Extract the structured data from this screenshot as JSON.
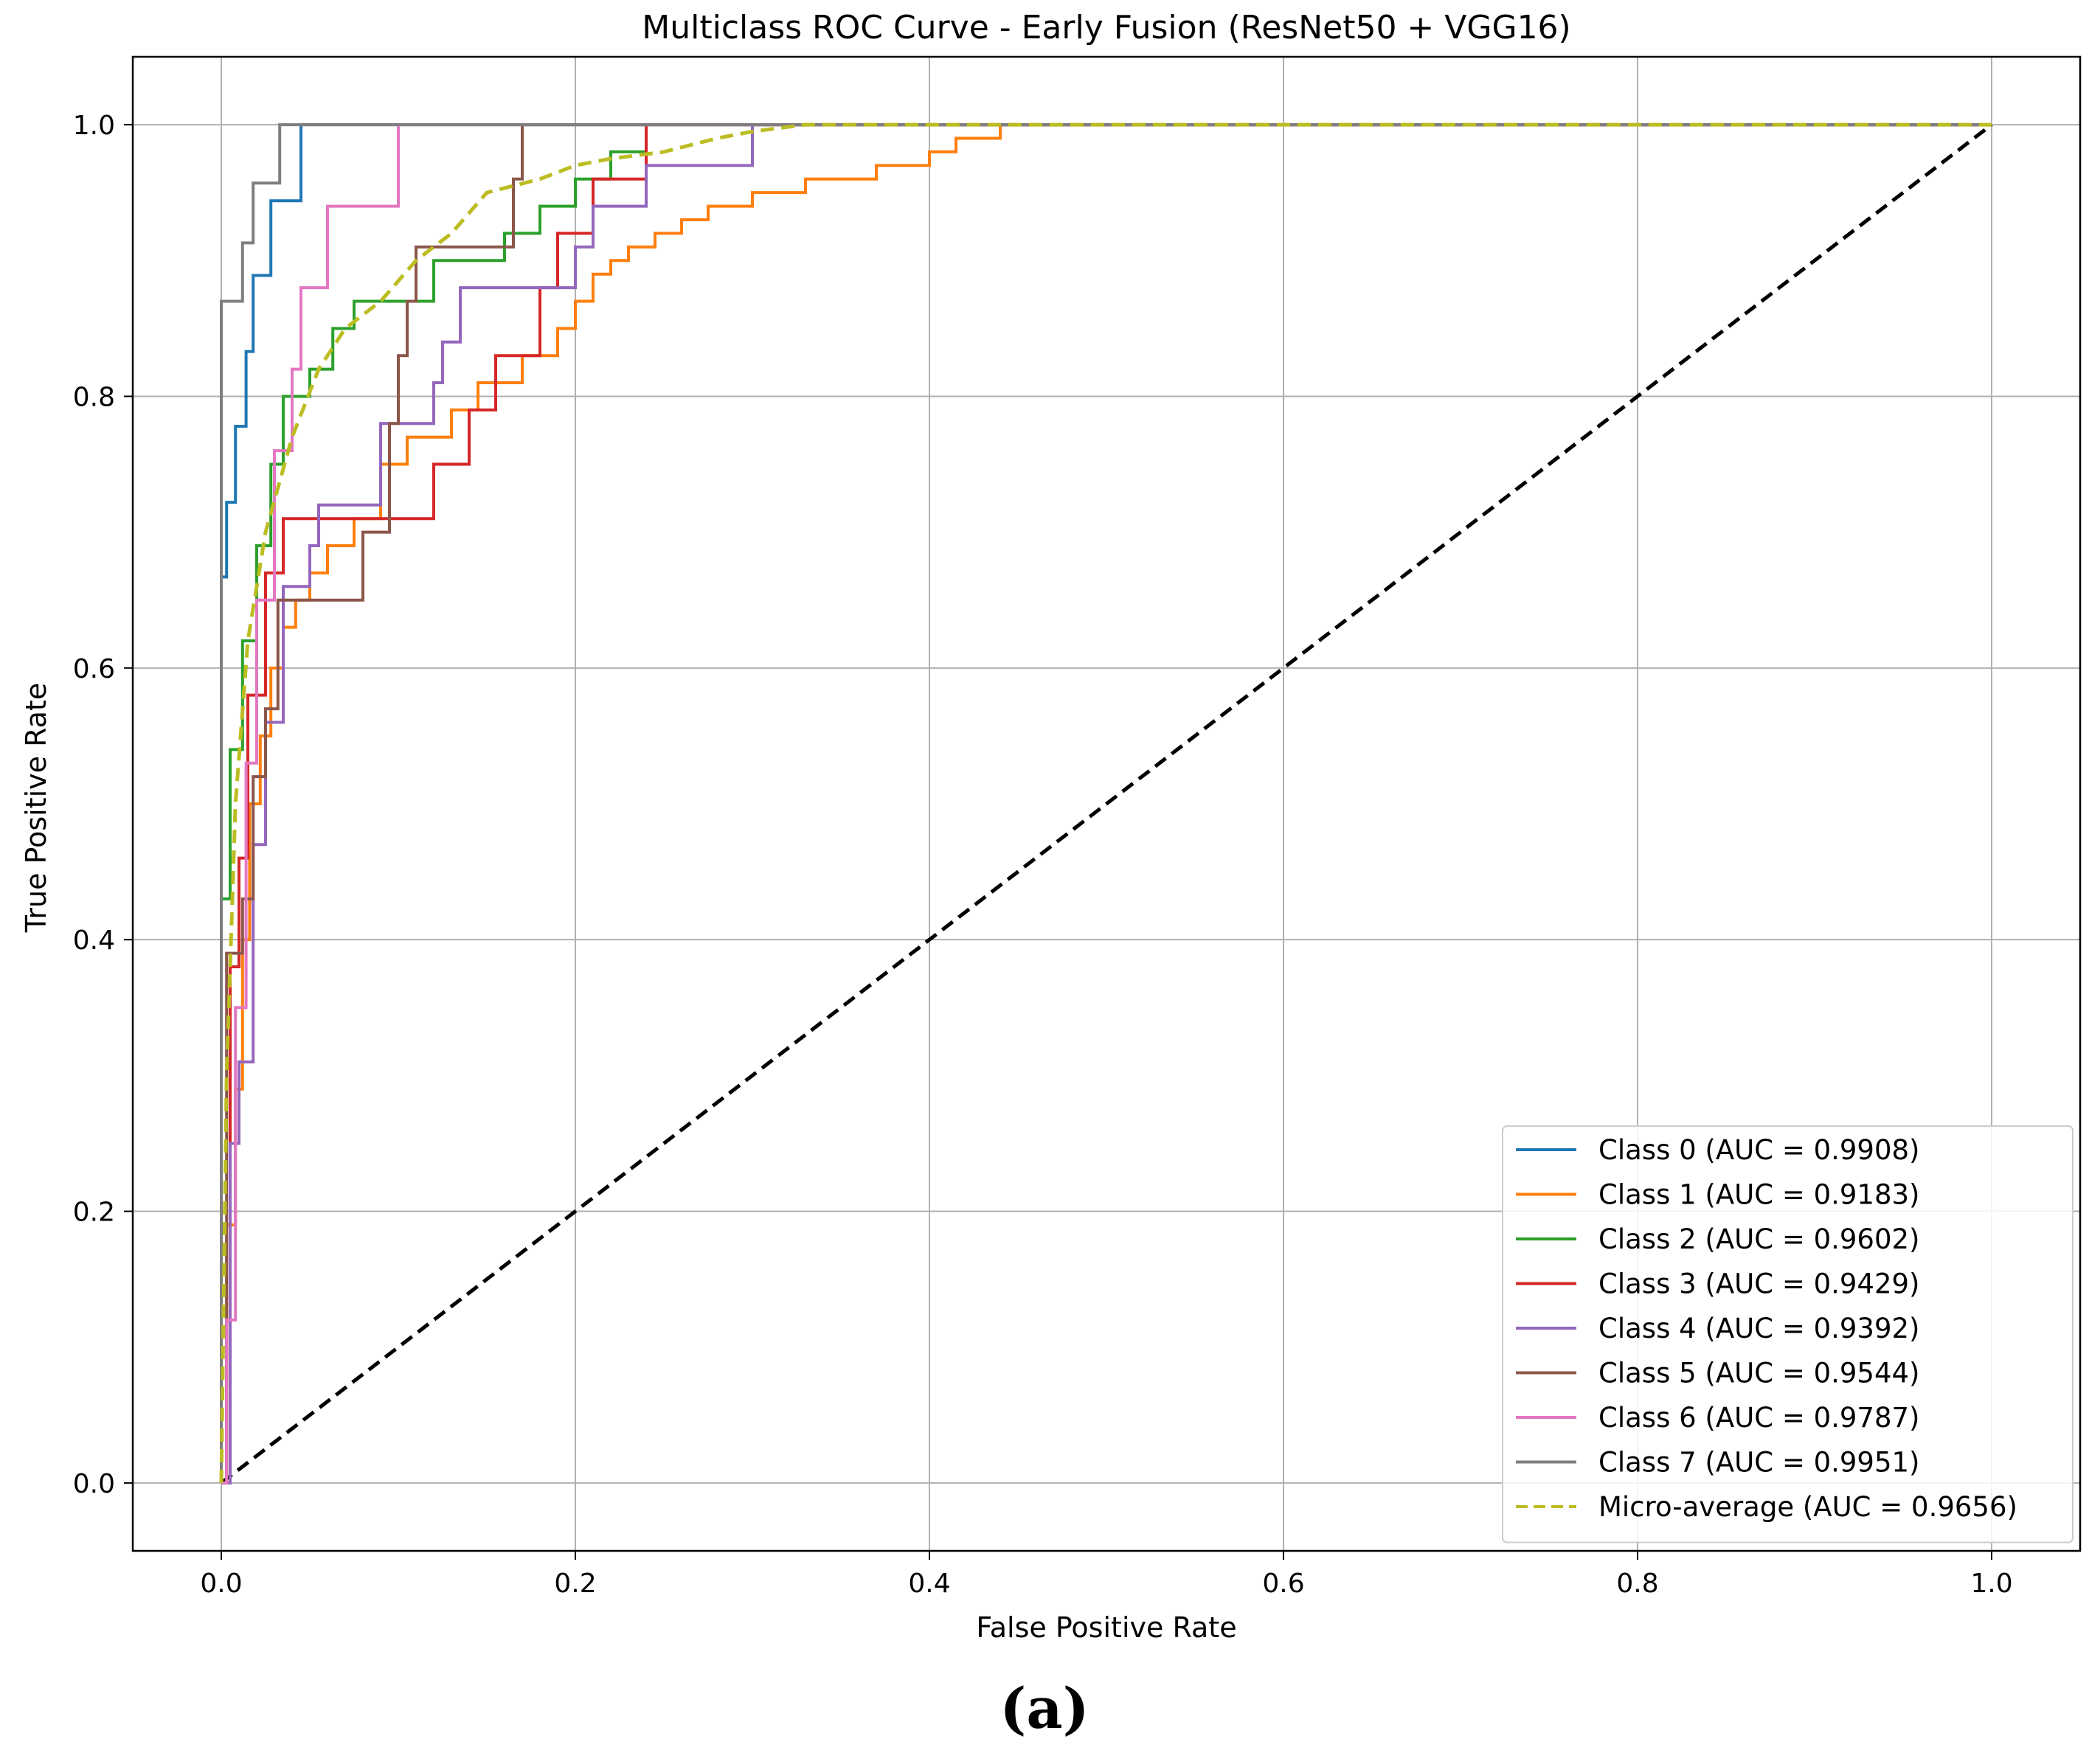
{
  "caption": "(a)",
  "chart_data": {
    "type": "line",
    "title": "Multiclass ROC Curve - Early Fusion (ResNet50 + VGG16)",
    "xlabel": "False Positive Rate",
    "ylabel": "True Positive Rate",
    "xlim": [
      -0.05,
      1.05
    ],
    "ylim": [
      -0.05,
      1.05
    ],
    "xticks": [
      0.0,
      0.2,
      0.4,
      0.6,
      0.8,
      1.0
    ],
    "yticks": [
      0.0,
      0.2,
      0.4,
      0.6,
      0.8,
      1.0
    ],
    "xtick_labels": [
      "0.0",
      "0.2",
      "0.4",
      "0.6",
      "0.8",
      "1.0"
    ],
    "ytick_labels": [
      "0.0",
      "0.2",
      "0.4",
      "0.6",
      "0.8",
      "1.0"
    ],
    "grid": true,
    "legend_position": "lower-right",
    "series": [
      {
        "name": "Class 0 (AUC = 0.9908)",
        "color": "#1f77b4",
        "dash": "solid",
        "x": [
          0,
          0,
          0.003,
          0.003,
          0.008,
          0.008,
          0.014,
          0.014,
          0.018,
          0.018,
          0.028,
          0.028,
          0.045,
          0.045,
          0.055,
          0.055,
          1.0
        ],
        "y": [
          0,
          0.667,
          0.667,
          0.722,
          0.722,
          0.778,
          0.778,
          0.833,
          0.833,
          0.889,
          0.889,
          0.944,
          0.944,
          1.0,
          1.0,
          1.0,
          1.0
        ]
      },
      {
        "name": "Class 1 (AUC = 0.9183)",
        "color": "#ff7f0e",
        "dash": "solid",
        "x": [
          0,
          0.003,
          0.003,
          0.008,
          0.008,
          0.012,
          0.012,
          0.016,
          0.016,
          0.022,
          0.022,
          0.028,
          0.028,
          0.035,
          0.035,
          0.042,
          0.042,
          0.05,
          0.05,
          0.06,
          0.06,
          0.075,
          0.075,
          0.09,
          0.09,
          0.105,
          0.105,
          0.13,
          0.13,
          0.145,
          0.145,
          0.17,
          0.17,
          0.19,
          0.19,
          0.2,
          0.2,
          0.21,
          0.21,
          0.22,
          0.22,
          0.23,
          0.23,
          0.245,
          0.245,
          0.26,
          0.26,
          0.275,
          0.275,
          0.3,
          0.3,
          0.33,
          0.33,
          0.37,
          0.37,
          0.4,
          0.4,
          0.415,
          0.415,
          0.44,
          0.44,
          0.51,
          0.51,
          0.7,
          0.7,
          0.745,
          0.745,
          1.0
        ],
        "y": [
          0,
          0,
          0.19,
          0.19,
          0.29,
          0.29,
          0.4,
          0.4,
          0.5,
          0.5,
          0.55,
          0.55,
          0.6,
          0.6,
          0.63,
          0.63,
          0.65,
          0.65,
          0.67,
          0.67,
          0.69,
          0.69,
          0.71,
          0.71,
          0.75,
          0.75,
          0.77,
          0.77,
          0.79,
          0.79,
          0.81,
          0.81,
          0.83,
          0.83,
          0.85,
          0.85,
          0.87,
          0.87,
          0.89,
          0.89,
          0.9,
          0.9,
          0.91,
          0.91,
          0.92,
          0.92,
          0.93,
          0.93,
          0.94,
          0.94,
          0.95,
          0.95,
          0.96,
          0.96,
          0.97,
          0.97,
          0.98,
          0.98,
          0.99,
          0.99,
          1.0,
          1.0,
          1.0,
          1.0,
          1.0,
          1.0,
          1.0,
          1.0
        ]
      },
      {
        "name": "Class 2 (AUC = 0.9602)",
        "color": "#2ca02c",
        "dash": "solid",
        "x": [
          0,
          0,
          0.005,
          0.005,
          0.012,
          0.012,
          0.02,
          0.02,
          0.028,
          0.028,
          0.035,
          0.035,
          0.05,
          0.05,
          0.063,
          0.063,
          0.075,
          0.075,
          0.12,
          0.12,
          0.16,
          0.16,
          0.18,
          0.18,
          0.2,
          0.2,
          0.22,
          0.22,
          0.24,
          0.24,
          0.26,
          0.26,
          1.0
        ],
        "y": [
          0,
          0.43,
          0.43,
          0.54,
          0.54,
          0.62,
          0.62,
          0.69,
          0.69,
          0.75,
          0.75,
          0.8,
          0.8,
          0.82,
          0.82,
          0.85,
          0.85,
          0.87,
          0.87,
          0.9,
          0.9,
          0.92,
          0.92,
          0.94,
          0.94,
          0.96,
          0.96,
          0.98,
          0.98,
          1.0,
          1.0,
          1.0,
          1.0
        ],
        "_note_removed": ""
      },
      {
        "name": "Class 3 (AUC = 0.9429)",
        "color": "#d62728",
        "dash": "solid",
        "x": [
          0,
          0.005,
          0.005,
          0.01,
          0.01,
          0.015,
          0.015,
          0.025,
          0.025,
          0.035,
          0.035,
          0.05,
          0.05,
          0.07,
          0.07,
          0.12,
          0.12,
          0.14,
          0.14,
          0.155,
          0.155,
          0.16,
          0.16,
          0.18,
          0.18,
          0.19,
          0.19,
          0.21,
          0.21,
          0.24,
          0.24,
          1.0
        ],
        "y": [
          0,
          0,
          0.38,
          0.38,
          0.46,
          0.46,
          0.58,
          0.58,
          0.67,
          0.67,
          0.71,
          0.71,
          0.71,
          0.71,
          0.71,
          0.71,
          0.75,
          0.75,
          0.79,
          0.79,
          0.83,
          0.83,
          0.83,
          0.83,
          0.88,
          0.88,
          0.92,
          0.92,
          0.96,
          0.96,
          1.0,
          1.0
        ]
      },
      {
        "name": "Class 4 (AUC = 0.9392)",
        "color": "#9467bd",
        "dash": "solid",
        "x": [
          0,
          0.005,
          0.005,
          0.01,
          0.01,
          0.018,
          0.018,
          0.025,
          0.025,
          0.035,
          0.035,
          0.05,
          0.05,
          0.055,
          0.055,
          0.065,
          0.065,
          0.09,
          0.09,
          0.12,
          0.12,
          0.125,
          0.125,
          0.135,
          0.135,
          0.165,
          0.165,
          0.2,
          0.2,
          0.21,
          0.21,
          0.24,
          0.24,
          0.26,
          0.26,
          0.3,
          0.3,
          0.32,
          0.32,
          1.0
        ],
        "y": [
          0,
          0,
          0.25,
          0.25,
          0.31,
          0.31,
          0.47,
          0.47,
          0.56,
          0.56,
          0.66,
          0.66,
          0.69,
          0.69,
          0.72,
          0.72,
          0.72,
          0.72,
          0.78,
          0.78,
          0.81,
          0.81,
          0.84,
          0.84,
          0.88,
          0.88,
          0.88,
          0.88,
          0.91,
          0.91,
          0.94,
          0.94,
          0.97,
          0.97,
          0.97,
          0.97,
          1.0,
          1.0,
          1.0,
          1.0
        ]
      },
      {
        "name": "Class 5 (AUC = 0.9544)",
        "color": "#8c564b",
        "dash": "solid",
        "x": [
          0,
          0.003,
          0.003,
          0.012,
          0.012,
          0.018,
          0.018,
          0.025,
          0.025,
          0.032,
          0.032,
          0.055,
          0.055,
          0.08,
          0.08,
          0.095,
          0.095,
          0.1,
          0.1,
          0.105,
          0.105,
          0.11,
          0.11,
          0.14,
          0.14,
          0.165,
          0.165,
          0.17,
          0.17,
          1.0
        ],
        "y": [
          0,
          0,
          0.39,
          0.39,
          0.43,
          0.43,
          0.52,
          0.52,
          0.57,
          0.57,
          0.65,
          0.65,
          0.65,
          0.65,
          0.7,
          0.7,
          0.78,
          0.78,
          0.83,
          0.83,
          0.87,
          0.87,
          0.91,
          0.91,
          0.91,
          0.91,
          0.96,
          0.96,
          1.0,
          1.0
        ]
      },
      {
        "name": "Class 6 (AUC = 0.9787)",
        "color": "#e377c2",
        "dash": "solid",
        "x": [
          0,
          0.003,
          0.003,
          0.008,
          0.008,
          0.014,
          0.014,
          0.02,
          0.02,
          0.03,
          0.03,
          0.04,
          0.04,
          0.045,
          0.045,
          0.06,
          0.06,
          0.1,
          0.1,
          1.0
        ],
        "y": [
          0,
          0,
          0.12,
          0.12,
          0.35,
          0.35,
          0.53,
          0.53,
          0.65,
          0.65,
          0.76,
          0.76,
          0.82,
          0.82,
          0.88,
          0.88,
          0.94,
          0.94,
          1.0,
          1.0
        ]
      },
      {
        "name": "Class 7 (AUC = 0.9951)",
        "color": "#7f7f7f",
        "dash": "solid",
        "x": [
          0,
          0,
          0.005,
          0.005,
          0.012,
          0.012,
          0.018,
          0.018,
          0.03,
          0.03,
          0.033,
          0.033,
          1.0
        ],
        "y": [
          0,
          0.87,
          0.87,
          0.87,
          0.87,
          0.913,
          0.913,
          0.957,
          0.957,
          0.957,
          0.957,
          1.0,
          1.0
        ]
      },
      {
        "name": "Micro-average (AUC = 0.9656)",
        "color": "#bcbd22",
        "dash": "dashed",
        "x": [
          0,
          0.003,
          0.008,
          0.015,
          0.025,
          0.04,
          0.055,
          0.07,
          0.09,
          0.11,
          0.13,
          0.15,
          0.18,
          0.2,
          0.22,
          0.25,
          0.28,
          0.3,
          0.33,
          0.4,
          0.5,
          0.7,
          1.0
        ],
        "y": [
          0,
          0.3,
          0.5,
          0.62,
          0.7,
          0.77,
          0.82,
          0.85,
          0.87,
          0.9,
          0.92,
          0.95,
          0.96,
          0.97,
          0.975,
          0.98,
          0.99,
          0.995,
          1.0,
          1.0,
          1.0,
          1.0,
          1.0
        ]
      }
    ],
    "reference_line": {
      "x": [
        0,
        1.0
      ],
      "y": [
        0,
        1.0
      ],
      "color": "#000000",
      "dash": "dashed"
    }
  }
}
